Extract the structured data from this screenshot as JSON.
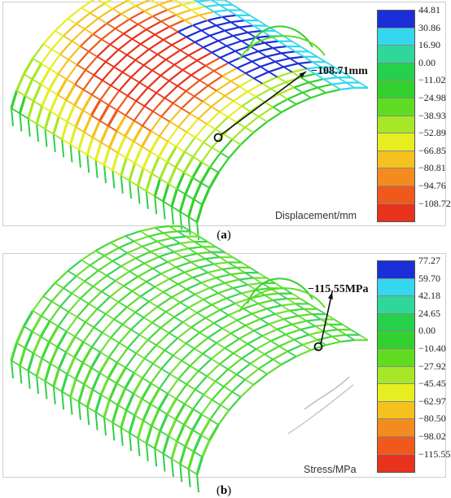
{
  "panels": [
    {
      "caption_label": "a",
      "annotation": "−108.71mm",
      "scale_label": "Displacement/mm",
      "scale_ticks": [
        "44.81",
        "30.86",
        "16.90",
        "0.00",
        "−11.02",
        "−24.98",
        "−38.93",
        "−52.89",
        "−66.85",
        "−80.81",
        "−94.76",
        "−108.72"
      ],
      "colors": [
        "#1b2fd8",
        "#35d7ee",
        "#2fd79a",
        "#25d04a",
        "#33d12f",
        "#5fdc22",
        "#a6e827",
        "#e6ee22",
        "#f5c11e",
        "#f38b1e",
        "#ef5a1c",
        "#e8321b"
      ]
    },
    {
      "caption_label": "b",
      "annotation": "−115.55MPa",
      "scale_label": "Stress/MPa",
      "scale_ticks": [
        "77.27",
        "59.70",
        "42.18",
        "24.65",
        "0.00",
        "−10.40",
        "−27.92",
        "−45.45",
        "−62.97",
        "−80.50",
        "−98.02",
        "−115.55"
      ],
      "colors": [
        "#1b2fd8",
        "#35d7ee",
        "#2fd79a",
        "#25d04a",
        "#33d12f",
        "#5fdc22",
        "#a6e827",
        "#e6ee22",
        "#f5c11e",
        "#f38b1e",
        "#ef5a1c",
        "#e8321b"
      ]
    }
  ]
}
